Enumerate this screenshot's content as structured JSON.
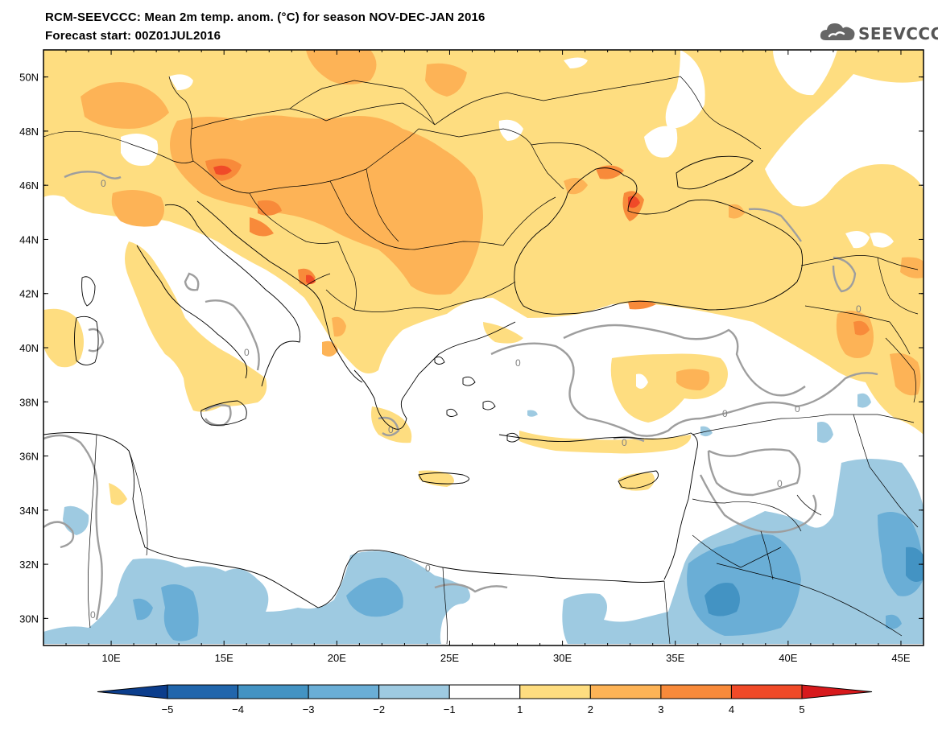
{
  "title_line1": "RCM-SEEVCCC: Mean 2m temp. anom. (°C) for season NOV-DEC-JAN 2016",
  "title_line2": "Forecast start: 00Z01JUL2016",
  "logo_text": "SEEVCCC",
  "logo_icon": "cloud-icon",
  "map": {
    "lon_range": [
      7,
      46
    ],
    "lat_range": [
      29,
      51
    ],
    "lat_labels": [
      {
        "lat": 50,
        "label": "50N"
      },
      {
        "lat": 48,
        "label": "48N"
      },
      {
        "lat": 46,
        "label": "46N"
      },
      {
        "lat": 44,
        "label": "44N"
      },
      {
        "lat": 42,
        "label": "42N"
      },
      {
        "lat": 40,
        "label": "40N"
      },
      {
        "lat": 38,
        "label": "38N"
      },
      {
        "lat": 36,
        "label": "36N"
      },
      {
        "lat": 34,
        "label": "34N"
      },
      {
        "lat": 32,
        "label": "32N"
      },
      {
        "lat": 30,
        "label": "30N"
      }
    ],
    "lon_labels": [
      {
        "lon": 10,
        "label": "10E"
      },
      {
        "lon": 15,
        "label": "15E"
      },
      {
        "lon": 20,
        "label": "20E"
      },
      {
        "lon": 25,
        "label": "25E"
      },
      {
        "lon": 30,
        "label": "30E"
      },
      {
        "lon": 35,
        "label": "35E"
      },
      {
        "lon": 40,
        "label": "40E"
      },
      {
        "lon": 45,
        "label": "45E"
      }
    ],
    "zero_contour_label": "0"
  },
  "colorbar": {
    "labels": [
      "−5",
      "−4",
      "−3",
      "−2",
      "−1",
      "1",
      "2",
      "3",
      "4",
      "5"
    ],
    "colors": [
      "#0b3d8c",
      "#2166ac",
      "#4393c3",
      "#6aaed6",
      "#9ecae1",
      "#ffffff",
      "#fedd80",
      "#fdb356",
      "#f88a3a",
      "#f04a28",
      "#d7191c"
    ]
  }
}
